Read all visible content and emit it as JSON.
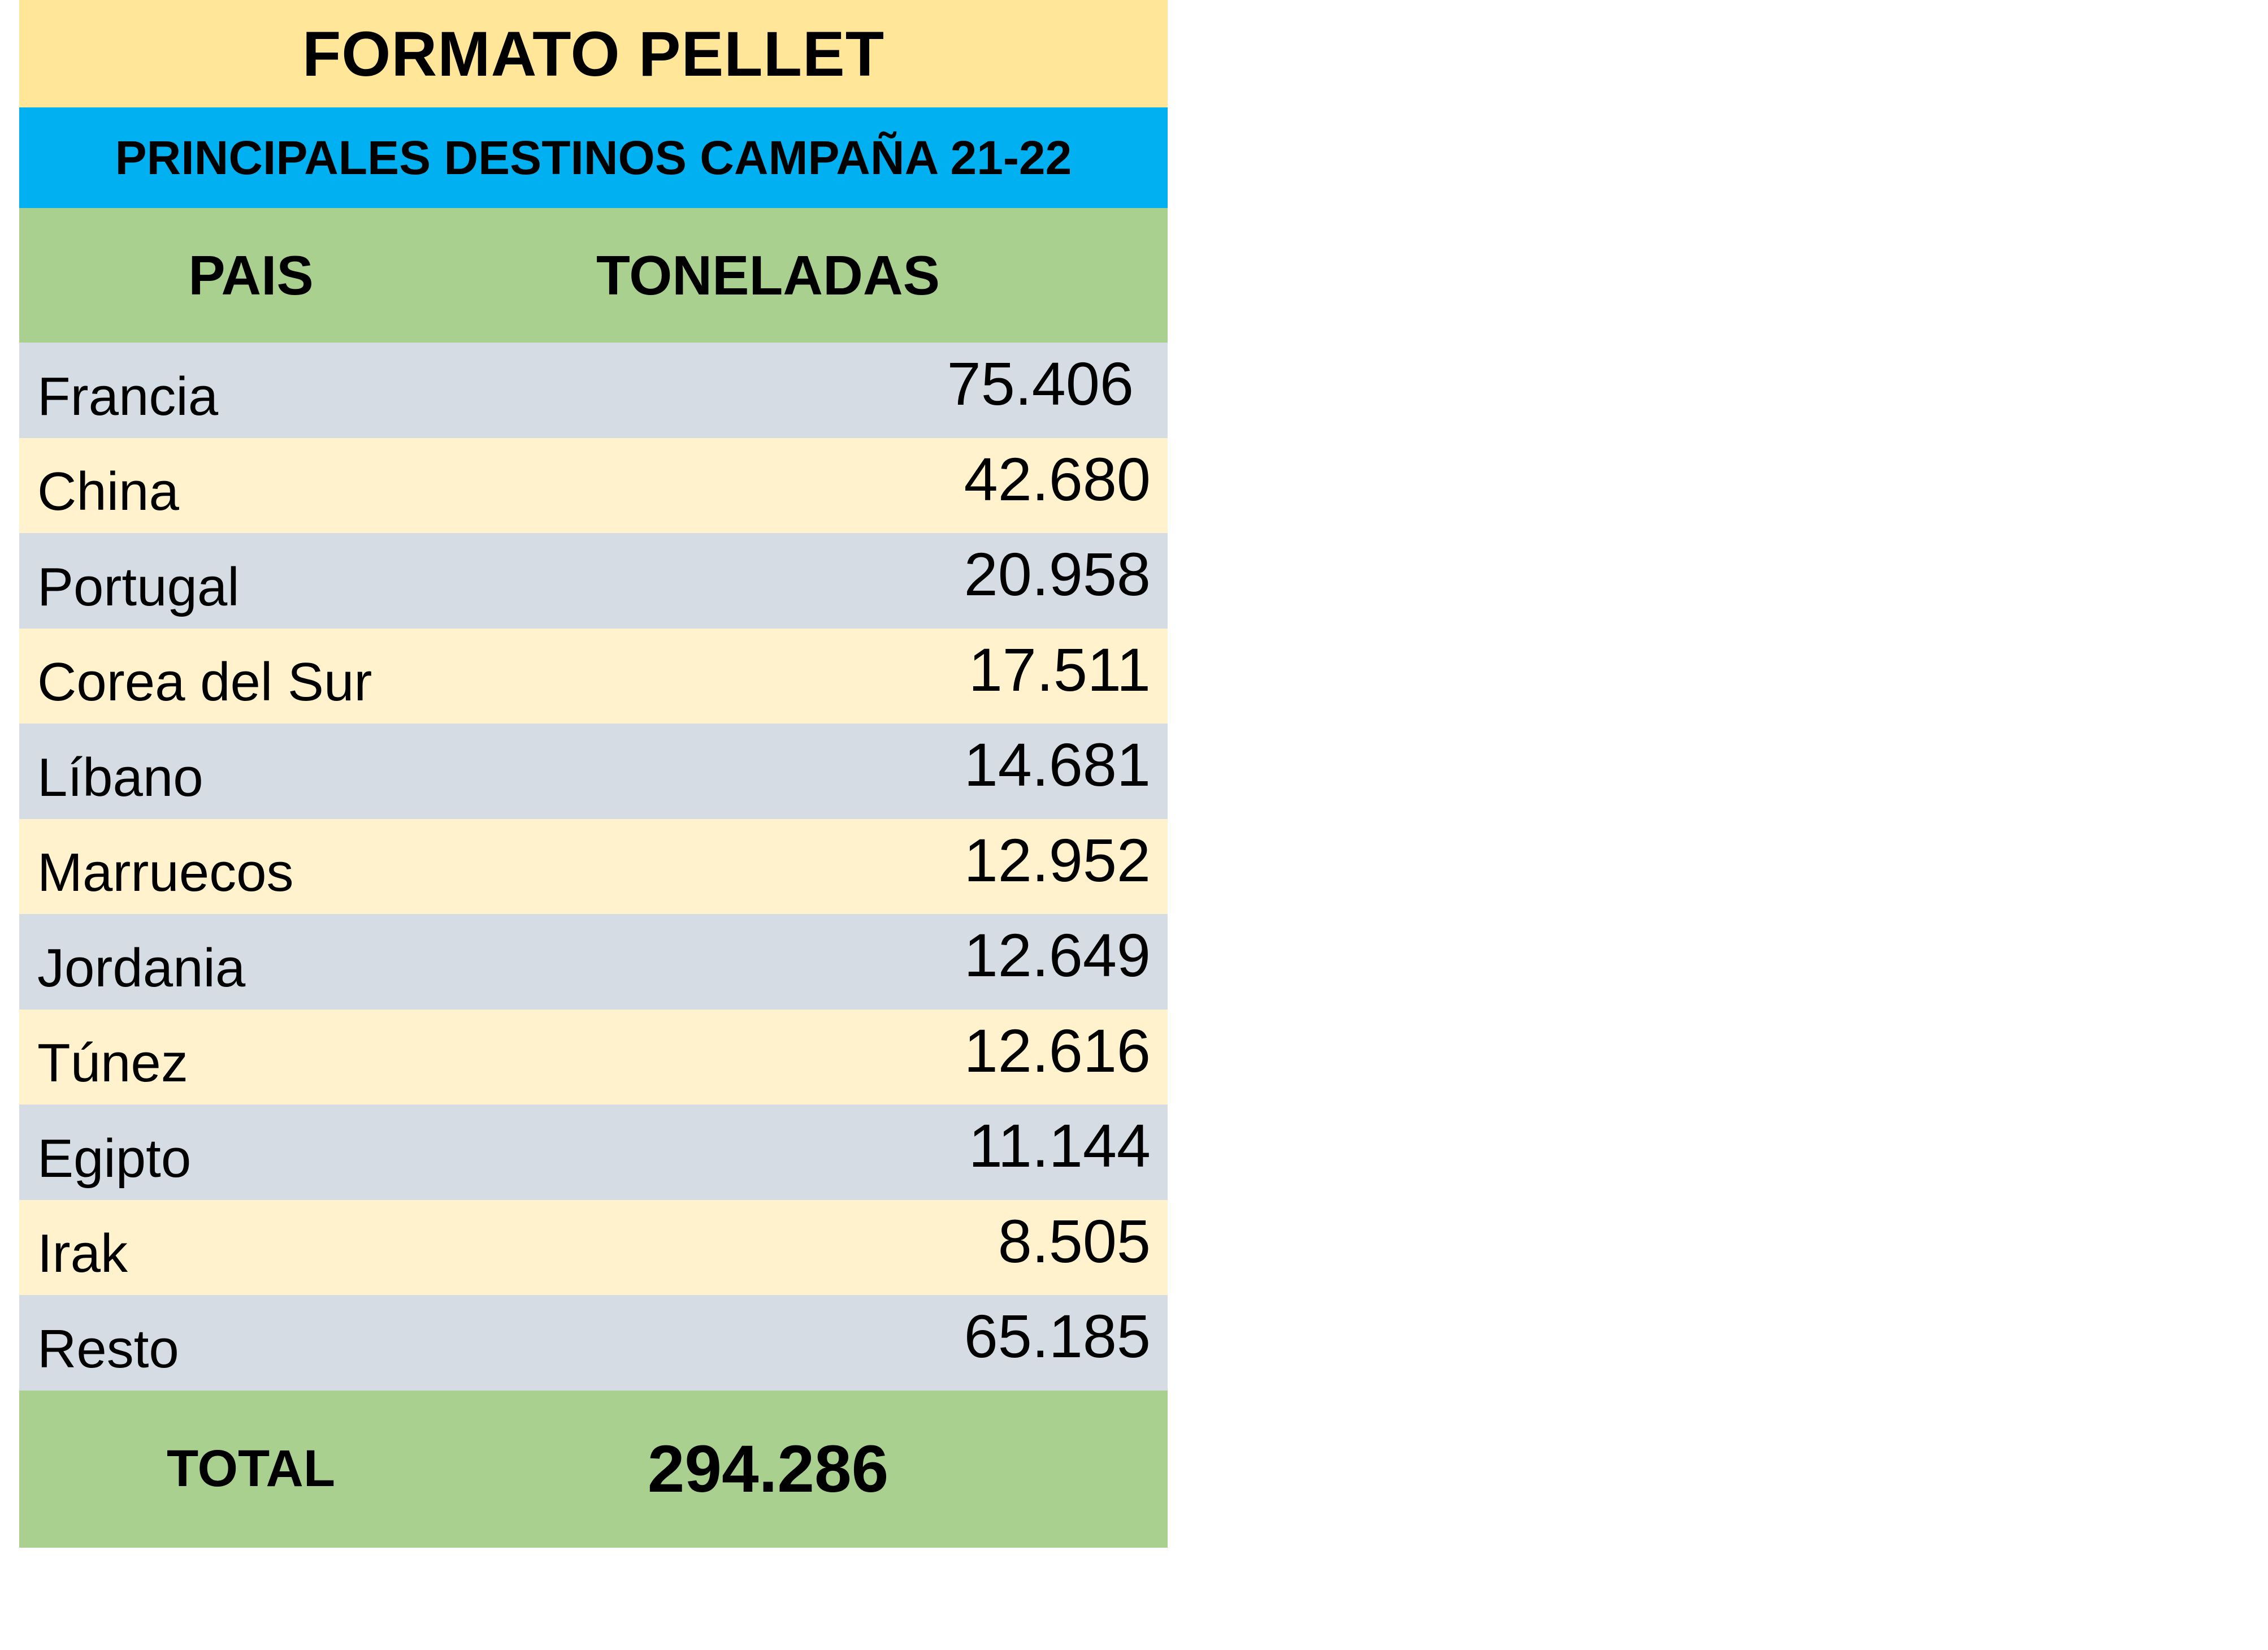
{
  "title": "FORMATO PELLET",
  "subtitle": "PRINCIPALES DESTINOS CAMPAÑA 21-22",
  "headers": {
    "country": "PAIS",
    "tonnes": "TONELADAS"
  },
  "rows": [
    {
      "country": "Francia",
      "tonnes": "75.406"
    },
    {
      "country": "China",
      "tonnes": "42.680"
    },
    {
      "country": "Portugal",
      "tonnes": "20.958"
    },
    {
      "country": "Corea del Sur",
      "tonnes": "17.511"
    },
    {
      "country": "Líbano",
      "tonnes": "14.681"
    },
    {
      "country": "Marruecos",
      "tonnes": "12.952"
    },
    {
      "country": "Jordania",
      "tonnes": "12.649"
    },
    {
      "country": "Túnez",
      "tonnes": "12.616"
    },
    {
      "country": "Egipto",
      "tonnes": "11.144"
    },
    {
      "country": "Irak",
      "tonnes": "8.505"
    },
    {
      "country": "Resto",
      "tonnes": "65.185"
    }
  ],
  "total": {
    "label": "TOTAL",
    "tonnes": "294.286"
  },
  "colors": {
    "title_bg": "#ffe699",
    "subtitle_bg": "#00b0f0",
    "header_bg": "#a9d08e",
    "row_odd_bg": "#d6dce4",
    "row_even_bg": "#fff2cc",
    "total_bg": "#a9d08e"
  }
}
